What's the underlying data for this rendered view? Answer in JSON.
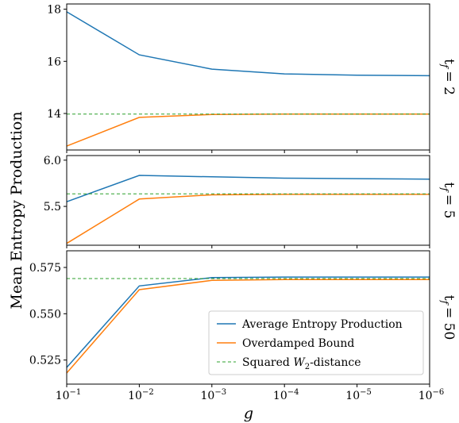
{
  "chart_data": {
    "type": "line",
    "ylabel": "Mean Entropy Production",
    "xlabel": "g",
    "x": [
      0.1,
      0.01,
      0.001,
      0.0001,
      1e-05,
      1e-06
    ],
    "x_scale": "log",
    "x_reversed": true,
    "x_ticks": [
      {
        "base": "10",
        "exp": "−1"
      },
      {
        "base": "10",
        "exp": "−2"
      },
      {
        "base": "10",
        "exp": "−3"
      },
      {
        "base": "10",
        "exp": "−4"
      },
      {
        "base": "10",
        "exp": "−5"
      },
      {
        "base": "10",
        "exp": "−6"
      }
    ],
    "legend": {
      "placement": "lower-right",
      "panel": 2,
      "entries": [
        {
          "label": "Average Entropy Production",
          "color": "#1f77b4",
          "style": "solid"
        },
        {
          "label": "Overdamped Bound",
          "color": "#ff7f0e",
          "style": "solid"
        },
        {
          "label_pre": "Squared ",
          "label_sym": "W",
          "label_sub": "2",
          "label_post": "-distance",
          "color": "#2ca02c",
          "style": "dashed"
        }
      ]
    },
    "panels": [
      {
        "label": "t",
        "label_sub": "f",
        "label_eq": "= 2",
        "ylim": [
          12.6,
          18.2
        ],
        "yticks": [
          14,
          16,
          18
        ],
        "ytick_labels": [
          "14",
          "16",
          "18"
        ],
        "series": [
          {
            "values": [
              17.9,
              16.25,
              15.7,
              15.52,
              15.47,
              15.45
            ]
          },
          {
            "values": [
              12.75,
              13.85,
              13.96,
              13.98,
              13.98,
              13.98
            ]
          },
          {
            "values": [
              13.98,
              13.98,
              13.98,
              13.98,
              13.98,
              13.98
            ]
          }
        ]
      },
      {
        "label": "t",
        "label_sub": "f",
        "label_eq": "= 5",
        "ylim": [
          5.08,
          6.05
        ],
        "yticks": [
          5.5,
          6.0
        ],
        "ytick_labels": [
          "5.5",
          "6.0"
        ],
        "series": [
          {
            "values": [
              5.55,
              5.835,
              5.82,
              5.805,
              5.8,
              5.795
            ]
          },
          {
            "values": [
              5.1,
              5.58,
              5.625,
              5.63,
              5.63,
              5.63
            ]
          },
          {
            "values": [
              5.635,
              5.635,
              5.635,
              5.635,
              5.635,
              5.635
            ]
          }
        ]
      },
      {
        "label": "t",
        "label_sub": "f",
        "label_eq": "= 50",
        "ylim": [
          0.512,
          0.584
        ],
        "yticks": [
          0.525,
          0.55,
          0.575
        ],
        "ytick_labels": [
          "0.525",
          "0.550",
          "0.575"
        ],
        "series": [
          {
            "values": [
              0.521,
              0.565,
              0.5695,
              0.5698,
              0.5698,
              0.5698
            ]
          },
          {
            "values": [
              0.518,
              0.563,
              0.568,
              0.5685,
              0.5685,
              0.5685
            ]
          },
          {
            "values": [
              0.569,
              0.569,
              0.569,
              0.569,
              0.569,
              0.569
            ]
          }
        ]
      }
    ]
  }
}
